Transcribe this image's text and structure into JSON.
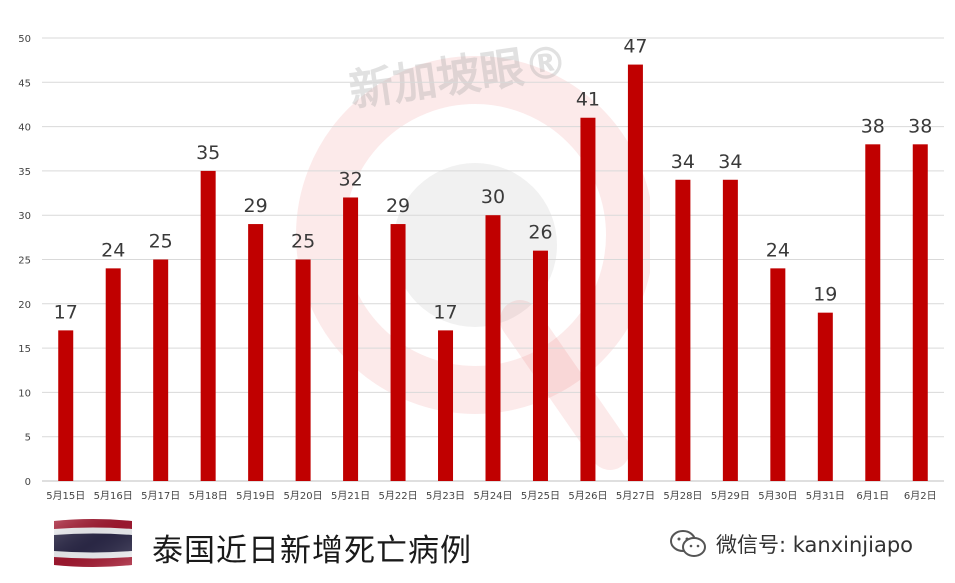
{
  "chart_data": {
    "type": "bar",
    "categories": [
      "5月15日",
      "5月16日",
      "5月17日",
      "5月18日",
      "5月19日",
      "5月20日",
      "5月21日",
      "5月22日",
      "5月23日",
      "5月24日",
      "5月25日",
      "5月26日",
      "5月27日",
      "5月28日",
      "5月29日",
      "5月30日",
      "5月31日",
      "6月1日",
      "6月2日"
    ],
    "values": [
      17,
      24,
      25,
      35,
      29,
      25,
      32,
      29,
      17,
      30,
      26,
      41,
      47,
      34,
      34,
      24,
      19,
      38,
      38
    ],
    "ylim": [
      0,
      50
    ],
    "yticks": [
      0,
      5,
      10,
      15,
      20,
      25,
      30,
      35,
      40,
      45,
      50
    ],
    "grid": true,
    "bar_color": "#c00000",
    "data_labels": true
  },
  "footer": {
    "caption": "泰国近日新增死亡病例",
    "wechat_text": "微信号: kanxinjiapo"
  },
  "watermark": {
    "text": "新加坡眼®",
    "icon": "magnifier-watermark-icon"
  },
  "icons": {
    "flag": "thailand-flag-icon",
    "wechat": "wechat-icon"
  }
}
